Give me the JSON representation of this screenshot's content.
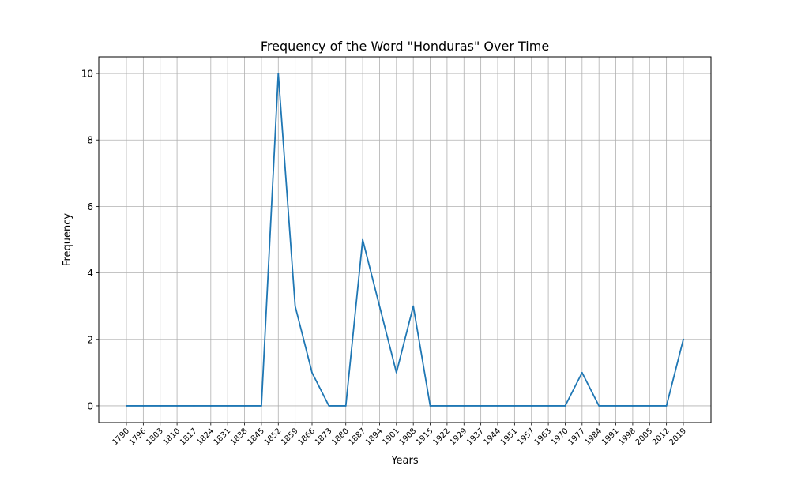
{
  "chart_data": {
    "type": "line",
    "title": "Frequency of the Word \"Honduras\" Over Time",
    "xlabel": "Years",
    "ylabel": "Frequency",
    "x": [
      "1790",
      "1796",
      "1803",
      "1810",
      "1817",
      "1824",
      "1831",
      "1838",
      "1845",
      "1852",
      "1859",
      "1866",
      "1873",
      "1880",
      "1887",
      "1894",
      "1901",
      "1908",
      "1915",
      "1922",
      "1929",
      "1937",
      "1944",
      "1951",
      "1957",
      "1963",
      "1970",
      "1977",
      "1984",
      "1991",
      "1998",
      "2005",
      "2012",
      "2019"
    ],
    "series": [
      {
        "values": [
          0,
          0,
          0,
          0,
          0,
          0,
          0,
          0,
          0,
          10,
          3,
          1,
          0,
          0,
          5,
          3,
          1,
          3,
          0,
          0,
          0,
          0,
          0,
          0,
          0,
          0,
          0,
          1,
          0,
          0,
          0,
          0,
          0,
          2
        ],
        "color": "#1f77b4"
      }
    ],
    "yticks": [
      0,
      2,
      4,
      6,
      8,
      10
    ],
    "ylim": [
      -0.5,
      10.5
    ],
    "grid": true,
    "legend": "none"
  }
}
